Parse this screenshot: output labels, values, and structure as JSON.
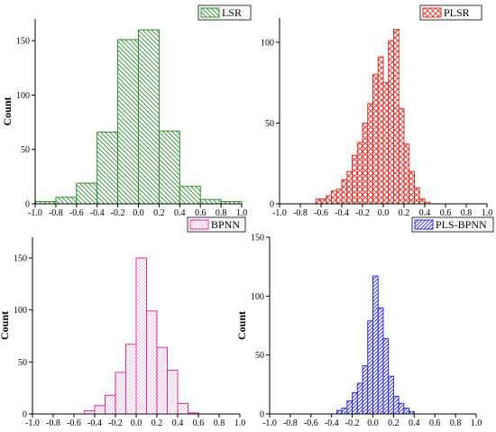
{
  "chart_data": [
    {
      "type": "histogram",
      "legend": "LSR",
      "color": "#2e8b2e",
      "pattern": "diag-down",
      "ylabel": "Count",
      "xlim": [
        -1.0,
        1.0
      ],
      "ylim": [
        0,
        170
      ],
      "yticks": [
        0,
        50,
        100,
        150
      ],
      "xticks": [
        -1.0,
        -0.8,
        -0.6,
        -0.4,
        -0.2,
        0.0,
        0.2,
        0.4,
        0.6,
        0.8,
        1.0
      ],
      "xtick_labels": [
        "-1.0",
        "-0.8",
        "-0.6",
        "-0.4",
        "-0.2",
        "0.0",
        "0.2",
        "0.4",
        "0.6",
        "0.8",
        "1.0"
      ],
      "bins": [
        {
          "x0": -1.0,
          "x1": -0.8,
          "count": 2
        },
        {
          "x0": -0.8,
          "x1": -0.6,
          "count": 6
        },
        {
          "x0": -0.6,
          "x1": -0.4,
          "count": 19
        },
        {
          "x0": -0.4,
          "x1": -0.2,
          "count": 66
        },
        {
          "x0": -0.2,
          "x1": 0.0,
          "count": 151
        },
        {
          "x0": 0.0,
          "x1": 0.2,
          "count": 160
        },
        {
          "x0": 0.2,
          "x1": 0.4,
          "count": 67
        },
        {
          "x0": 0.4,
          "x1": 0.6,
          "count": 16
        },
        {
          "x0": 0.6,
          "x1": 0.8,
          "count": 4
        },
        {
          "x0": 0.8,
          "x1": 1.0,
          "count": 2
        }
      ]
    },
    {
      "type": "histogram",
      "legend": "PLSR",
      "color": "#e0302a",
      "pattern": "crosshatch",
      "ylabel": "",
      "xlim": [
        -1.0,
        1.0
      ],
      "ylim": [
        0,
        115
      ],
      "yticks": [
        0,
        50,
        100
      ],
      "xticks": [
        -1.0,
        -0.8,
        -0.6,
        -0.4,
        -0.2,
        0.0,
        0.2,
        0.4,
        0.6,
        0.8,
        1.0
      ],
      "xtick_labels": [
        "-1.0",
        "-0.8",
        "-0.6",
        "-0.4",
        "-0.2",
        "0.0",
        "0.2",
        "0.4",
        "0.6",
        "0.8",
        "1.0"
      ],
      "bins": [
        {
          "x0": -0.65,
          "x1": -0.6,
          "count": 3
        },
        {
          "x0": -0.6,
          "x1": -0.55,
          "count": 3
        },
        {
          "x0": -0.55,
          "x1": -0.5,
          "count": 5
        },
        {
          "x0": -0.5,
          "x1": -0.45,
          "count": 8
        },
        {
          "x0": -0.45,
          "x1": -0.4,
          "count": 9
        },
        {
          "x0": -0.4,
          "x1": -0.35,
          "count": 15
        },
        {
          "x0": -0.35,
          "x1": -0.3,
          "count": 20
        },
        {
          "x0": -0.3,
          "x1": -0.25,
          "count": 30
        },
        {
          "x0": -0.25,
          "x1": -0.2,
          "count": 38
        },
        {
          "x0": -0.2,
          "x1": -0.15,
          "count": 50
        },
        {
          "x0": -0.15,
          "x1": -0.1,
          "count": 62
        },
        {
          "x0": -0.1,
          "x1": -0.05,
          "count": 80
        },
        {
          "x0": -0.05,
          "x1": 0.0,
          "count": 91
        },
        {
          "x0": 0.0,
          "x1": 0.05,
          "count": 75
        },
        {
          "x0": 0.05,
          "x1": 0.1,
          "count": 101
        },
        {
          "x0": 0.1,
          "x1": 0.15,
          "count": 108
        },
        {
          "x0": 0.15,
          "x1": 0.2,
          "count": 59
        },
        {
          "x0": 0.2,
          "x1": 0.25,
          "count": 37
        },
        {
          "x0": 0.25,
          "x1": 0.3,
          "count": 20
        },
        {
          "x0": 0.3,
          "x1": 0.35,
          "count": 10
        },
        {
          "x0": 0.35,
          "x1": 0.4,
          "count": 3
        },
        {
          "x0": 0.4,
          "x1": 0.45,
          "count": 1
        }
      ]
    },
    {
      "type": "histogram",
      "legend": "BPNN",
      "color": "#e0299a",
      "pattern": "dots",
      "ylabel": "Count",
      "xlim": [
        -1.0,
        1.0
      ],
      "ylim": [
        0,
        170
      ],
      "yticks": [
        0,
        50,
        100,
        150
      ],
      "xticks": [
        -1.0,
        -0.8,
        -0.6,
        -0.4,
        -0.2,
        0.0,
        0.2,
        0.4,
        0.6,
        0.8,
        1.0
      ],
      "xtick_labels": [
        "-1.0",
        "-0.8",
        "-0.6",
        "-0.4",
        "-0.2",
        "0.0",
        "0.2",
        "0.4",
        "0.6",
        "0.8",
        "1.0"
      ],
      "bins": [
        {
          "x0": -0.5,
          "x1": -0.4,
          "count": 3
        },
        {
          "x0": -0.4,
          "x1": -0.3,
          "count": 8
        },
        {
          "x0": -0.3,
          "x1": -0.2,
          "count": 18
        },
        {
          "x0": -0.2,
          "x1": -0.1,
          "count": 40
        },
        {
          "x0": -0.1,
          "x1": 0.0,
          "count": 67
        },
        {
          "x0": 0.0,
          "x1": 0.1,
          "count": 150
        },
        {
          "x0": 0.1,
          "x1": 0.2,
          "count": 99
        },
        {
          "x0": 0.2,
          "x1": 0.3,
          "count": 64
        },
        {
          "x0": 0.3,
          "x1": 0.4,
          "count": 42
        },
        {
          "x0": 0.4,
          "x1": 0.5,
          "count": 10
        },
        {
          "x0": 0.5,
          "x1": 0.6,
          "count": 1
        }
      ]
    },
    {
      "type": "histogram",
      "legend": "PLS-BPNN",
      "color": "#2a2ad9",
      "pattern": "diag-up",
      "ylabel": "Count",
      "xlim": [
        -1.0,
        1.0
      ],
      "ylim": [
        0,
        150
      ],
      "yticks": [
        0,
        50,
        100,
        150
      ],
      "xticks": [
        -1.0,
        -0.8,
        -0.6,
        -0.4,
        -0.2,
        0.0,
        0.2,
        0.4,
        0.6,
        0.8,
        1.0
      ],
      "xtick_labels": [
        "-1.0",
        "-0.8",
        "-0.6",
        "-0.4",
        "-0.2",
        "0.0",
        "0.2",
        "0.4",
        "0.6",
        "0.8",
        "1.0"
      ],
      "bins": [
        {
          "x0": -0.35,
          "x1": -0.3,
          "count": 3
        },
        {
          "x0": -0.3,
          "x1": -0.25,
          "count": 5
        },
        {
          "x0": -0.25,
          "x1": -0.2,
          "count": 11
        },
        {
          "x0": -0.2,
          "x1": -0.15,
          "count": 18
        },
        {
          "x0": -0.15,
          "x1": -0.1,
          "count": 26
        },
        {
          "x0": -0.1,
          "x1": -0.05,
          "count": 41
        },
        {
          "x0": -0.05,
          "x1": 0.0,
          "count": 79
        },
        {
          "x0": 0.0,
          "x1": 0.05,
          "count": 117
        },
        {
          "x0": 0.05,
          "x1": 0.1,
          "count": 90
        },
        {
          "x0": 0.1,
          "x1": 0.15,
          "count": 64
        },
        {
          "x0": 0.15,
          "x1": 0.2,
          "count": 32
        },
        {
          "x0": 0.2,
          "x1": 0.25,
          "count": 15
        },
        {
          "x0": 0.25,
          "x1": 0.3,
          "count": 9
        },
        {
          "x0": 0.3,
          "x1": 0.35,
          "count": 5
        },
        {
          "x0": 0.35,
          "x1": 0.4,
          "count": 2
        }
      ]
    }
  ]
}
